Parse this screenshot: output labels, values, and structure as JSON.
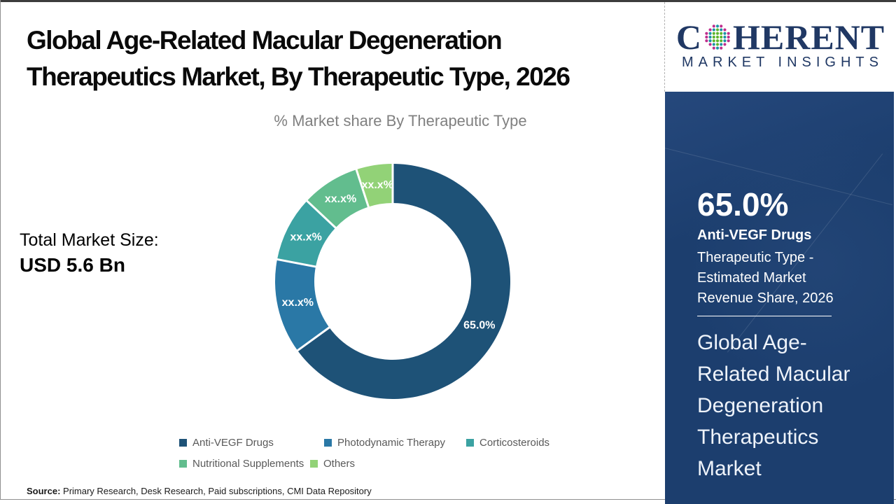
{
  "page": {
    "title": "Global Age-Related Macular Degeneration Therapeutics Market, By Therapeutic Type, 2026",
    "subtitle": "% Market share By Therapeutic Type",
    "total_market": {
      "label": "Total Market Size:",
      "value": "USD 5.6 Bn"
    },
    "source": {
      "label": "Source:",
      "text": " Primary Research, Desk Research, Paid subscriptions, CMI Data Repository"
    }
  },
  "logo": {
    "c": "C",
    "rest": "HERENT",
    "tagline": "MARKET INSIGHTS",
    "brand_color": "#203864",
    "globe_icon": "dotted-globe",
    "globe_dot_colors": [
      "#bf2e8d",
      "#1b93a5",
      "#5eb52d"
    ]
  },
  "chart_data": {
    "type": "pie",
    "donut": true,
    "title": "% Market share By Therapeutic Type",
    "legend_position": "bottom",
    "labels_masked": "All slices except Anti-VEGF Drugs display the masked label xx.x%; their numeric values are visual estimates.",
    "series": [
      {
        "name": "Anti-VEGF Drugs",
        "value": 65.0,
        "label": "65.0%",
        "color": "#1e5277"
      },
      {
        "name": "Photodynamic Therapy",
        "value": 13.0,
        "label": "xx.x%",
        "color": "#2a78a6"
      },
      {
        "name": "Corticosteroids",
        "value": 9.0,
        "label": "xx.x%",
        "color": "#3ba2a2"
      },
      {
        "name": "Nutritional Supplements",
        "value": 8.0,
        "label": "xx.x%",
        "color": "#62bd8e"
      },
      {
        "name": "Others",
        "value": 5.0,
        "label": "xx.x%",
        "color": "#92d277"
      }
    ]
  },
  "side_panel": {
    "background_color": "#1c3e6e",
    "stat_value": "65.0%",
    "stat_name": "Anti-VEGF Drugs",
    "stat_desc": "Therapeutic Type - Estimated Market Revenue Share, 2026",
    "market_name": "Global Age-Related Macular Degeneration Therapeutics Market"
  }
}
